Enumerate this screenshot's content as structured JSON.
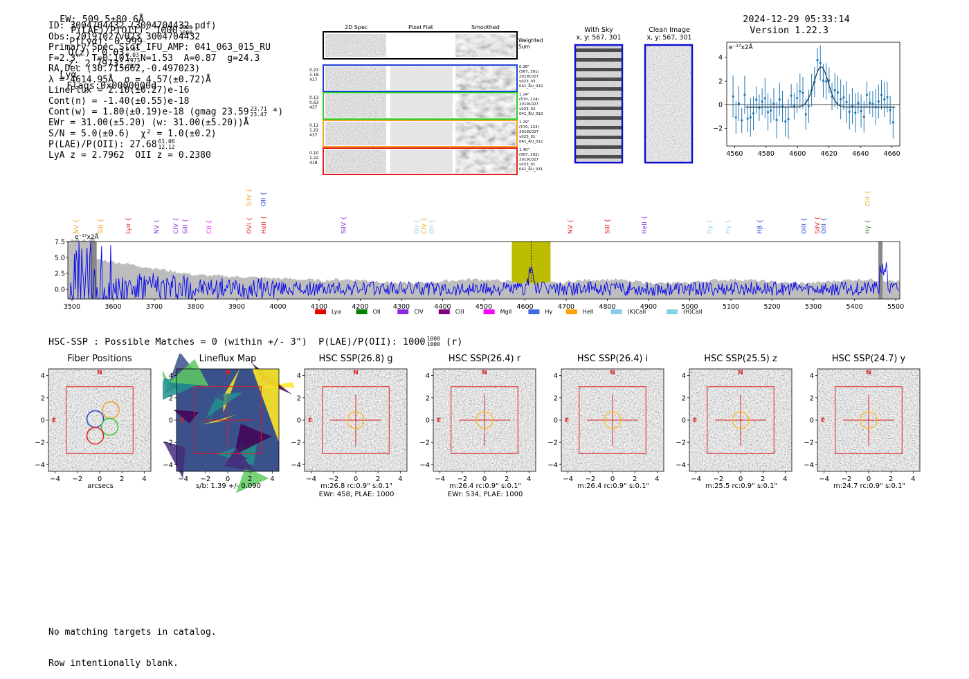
{
  "header": {
    "ew": "EW: 509.5±80.6Å",
    "plae_label": "P(LAE)/P(OII): 1000",
    "plae_up": "1000",
    "plae_lo": "1000",
    "plya": "P(Lyα): 0.999",
    "qz_label": "Q(z): 0.03",
    "qz_up": "0.03",
    "qz_lo": "0.03",
    "z_label": "z: 2.7973",
    "z_up": "2.7973",
    "z_lo": "2.7973",
    "z_line": "Lyα",
    "flags": "Flags:0x0000000d",
    "timestamp": "2024-12-29 05:33:14",
    "version": "Version 1.22.3"
  },
  "info": {
    "lines": [
      "ID: 3004704432 (3004704432.pdf)",
      "Obs: 20191027v023_3004704432",
      "Primary Spec_Slot_IFU_AMP: 041_063_015_RU",
      "F=2.3\"  T=0.101  N=1.53  A=0.87  g=24.3",
      "RA,Dec (30.715662,-0.497023)",
      "λ = 4614.95Å  σ = 4.57(±0.72)Å",
      "LineFlux = 2.10(±0.27)e-16",
      "Cont(n) = -1.40(±0.55)e-18"
    ],
    "contw": "Cont(w) = 1.80(±0.19)e-18 (gmag 23.59",
    "contw_up": "23.71",
    "contw_lo": "23.47",
    "contw_end": "*)",
    "ewr": "EWr = 31.00(±5.20) (w: 31.00(±5.20))Å",
    "sn": "S/N = 5.0(±0.6)  χ² = 1.0(±0.2)",
    "plae2": "P(LAE)/P(OII): 27.68",
    "plae2_up": "61.06",
    "plae2_lo": "12.12",
    "lya_z": "LyA z = 2.7962  OII z = 0.2380"
  },
  "stamps": {
    "col_2d": "2D Spec",
    "col_flat": "Pixel Flat",
    "col_smooth": "Smoothed",
    "weighted": "Weighted\nSum",
    "rows": [
      {
        "left": "0.23\n1.18\n417",
        "right": "0.38\"\n(567, 301)\n20191027\nv023_03\n041_RU_032",
        "color": "#1f3fd6"
      },
      {
        "left": "0.13\n0.63\n437",
        "right": "1.14\"\n(570, 124)\n20191027\nv023_02\n041_RU_012",
        "color": "#2ecc2e"
      },
      {
        "left": "0.12\n1.22\n437",
        "right": "1.29\"\n(570, 124)\n20191027\nv023_01\n041_RU_012",
        "color": "#f2a21e"
      },
      {
        "left": "0.10\n1.22\n418",
        "right": "1.40\"\n(567, 292)\n20191027\nv023_01\n041_RU_031",
        "color": "#e02020"
      }
    ]
  },
  "sky": {
    "with_sky": "With Sky",
    "with_sky_xy": "x, y: 567, 301",
    "clean": "Clean Image",
    "clean_xy": "x, y: 567, 301"
  },
  "fit": {
    "unit": "e⁻¹⁷x2Å",
    "yticks": [
      "4",
      "2",
      "0",
      "−2"
    ],
    "xticks": [
      "4560",
      "4580",
      "4600",
      "4620",
      "4640",
      "4660"
    ]
  },
  "spectrum": {
    "unit": "e⁻¹⁷x2Å",
    "yticks": [
      "7.5",
      "5.0",
      "2.5",
      "0.0"
    ],
    "xticks": [
      "3500",
      "3600",
      "3700",
      "3800",
      "3900",
      "4000",
      "4100",
      "4200",
      "4300",
      "4400",
      "4500",
      "4600",
      "4700",
      "4800",
      "4900",
      "5000",
      "5100",
      "5200",
      "5300",
      "5400",
      "5500"
    ],
    "lines": [
      {
        "name": "NV",
        "x": 3510,
        "color": "#f2a21e",
        "row": 1
      },
      {
        "name": "SiII",
        "x": 3570,
        "color": "#f2a21e",
        "row": 1
      },
      {
        "name": "Lyα",
        "x": 3636,
        "color": "#e02020",
        "row": 1
      },
      {
        "name": "NV",
        "x": 3705,
        "color": "#8a2be2",
        "row": 1
      },
      {
        "name": "CIV",
        "x": 3752,
        "color": "#8a2be2",
        "row": 1
      },
      {
        "name": "SiII",
        "x": 3775,
        "color": "#8a2be2",
        "row": 1
      },
      {
        "name": "CII",
        "x": 3833,
        "color": "#ff00ff",
        "row": 1
      },
      {
        "name": "SiIV",
        "x": 3930,
        "color": "#f2a21e",
        "row": 0
      },
      {
        "name": "OVI",
        "x": 3930,
        "color": "#e02020",
        "row": 1
      },
      {
        "name": "OII",
        "x": 3965,
        "color": "#1f3fd6",
        "row": 0
      },
      {
        "name": "HeII",
        "x": 3966,
        "color": "#e02020",
        "row": 1
      },
      {
        "name": "SiIV",
        "x": 4160,
        "color": "#8a2be2",
        "row": 1
      },
      {
        "name": "OII",
        "x": 4337,
        "color": "#8fcfee",
        "row": 1
      },
      {
        "name": "CIV",
        "x": 4355,
        "color": "#f2a21e",
        "row": 1
      },
      {
        "name": "OII",
        "x": 4373,
        "color": "#8fcfee",
        "row": 1
      },
      {
        "name": "NV",
        "x": 4710,
        "color": "#e02020",
        "row": 1
      },
      {
        "name": "SiII",
        "x": 4800,
        "color": "#e02020",
        "row": 1
      },
      {
        "name": "HeII",
        "x": 4890,
        "color": "#8a2be2",
        "row": 1
      },
      {
        "name": "Hγ",
        "x": 5048,
        "color": "#8fcfee",
        "row": 1
      },
      {
        "name": "Hγ",
        "x": 5092,
        "color": "#8fcfee",
        "row": 1
      },
      {
        "name": "Hβ",
        "x": 5170,
        "color": "#1f3fd6",
        "row": 1
      },
      {
        "name": "OIII",
        "x": 5277,
        "color": "#1f3fd6",
        "row": 1
      },
      {
        "name": "SiIV",
        "x": 5310,
        "color": "#e02020",
        "row": 1
      },
      {
        "name": "OIII",
        "x": 5325,
        "color": "#1f3fd6",
        "row": 1
      },
      {
        "name": "CIII",
        "x": 5432,
        "color": "#f2a21e",
        "row": 0
      },
      {
        "name": "Hγ",
        "x": 5432,
        "color": "#2e8b2e",
        "row": 1
      }
    ],
    "legend": [
      {
        "label": "Lyα",
        "color": "#e60000"
      },
      {
        "label": "OII",
        "color": "#008000"
      },
      {
        "label": "CIV",
        "color": "#8a2be2"
      },
      {
        "label": "CIII",
        "color": "#800080"
      },
      {
        "label": "MgII",
        "color": "#ff00ff"
      },
      {
        "label": "Hγ",
        "color": "#4169e1"
      },
      {
        "label": "HeII",
        "color": "#ffa500"
      },
      {
        "label": "(K)CaII",
        "color": "#87ceeb"
      },
      {
        "label": "(H)CaII",
        "color": "#87ceeb"
      }
    ]
  },
  "hsc": {
    "title": "HSC-SSP : Possible Matches = 0 (within +/- 3\")  P(LAE)/P(OII): 1000",
    "title_up": "1000",
    "title_lo": "1000",
    "title_end": "(r)",
    "ticks": [
      "−4",
      "−2",
      "0",
      "2",
      "4"
    ],
    "yticks": [
      "4",
      "2",
      "0",
      "−2",
      "−4"
    ],
    "north": "N",
    "east": "E",
    "cutouts": [
      {
        "title": "Fiber Positions",
        "cap1": "arcsecs",
        "cap2": ""
      },
      {
        "title": "Lineflux Map",
        "cap1": "s/b: 1.39 +/- 0.090",
        "cap2": ""
      },
      {
        "title": "HSC SSP(26.8) g",
        "cap1": "m:26.8 rc:0.9\"  s:0.1\"",
        "cap2": "EWr: 458, PLAE: 1000"
      },
      {
        "title": "HSC SSP(26.4) r",
        "cap1": "m:26.4 rc:0.9\"  s:0.1\"",
        "cap2": "EWr: 534, PLAE: 1000"
      },
      {
        "title": "HSC SSP(26.4) i",
        "cap1": "m:26.4 rc:0.9\"  s:0.1\"",
        "cap2": ""
      },
      {
        "title": "HSC SSP(25.5) z",
        "cap1": "m:25.5 rc:0.9\"  s:0.1\"",
        "cap2": ""
      },
      {
        "title": "HSC SSP(24.7) y",
        "cap1": "m:24.7 rc:0.9\"  s:0.1\"",
        "cap2": ""
      }
    ]
  },
  "footer": {
    "line1": "No matching targets in catalog.",
    "line2": "Row intentionally blank."
  },
  "colors": {
    "spectrum": "#0000ee",
    "fit_points": "#1f77b4",
    "fit_curve": "#1d3c4e",
    "highlight": "#bcbc00",
    "aperture": "#e02020",
    "circle_hsc": "#f2c01e"
  }
}
